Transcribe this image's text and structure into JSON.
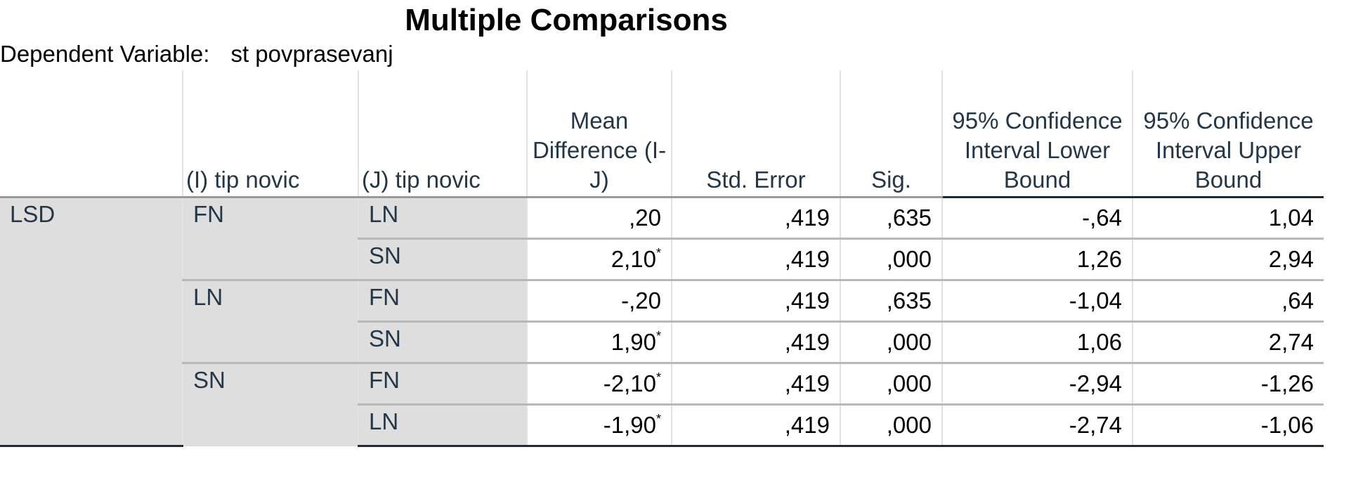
{
  "title": "Multiple Comparisons",
  "dependent_variable": {
    "label": "Dependent Variable:",
    "value": "st povprasevanj"
  },
  "table": {
    "columns": [
      "(I) tip novic",
      "(J) tip novic",
      "Mean Difference (I-J)",
      "Std. Error",
      "Sig.",
      "95% Confidence Interval Lower Bound",
      "95% Confidence Interval Upper Bound"
    ],
    "method": "LSD",
    "groups": [
      {
        "i": "FN",
        "rows": [
          {
            "j": "LN",
            "mean_difference": ",20",
            "std_error": ",419",
            "sig": ",635",
            "lower_bound": "-,64",
            "upper_bound": "1,04"
          },
          {
            "j": "SN",
            "mean_difference": "2,10",
            "flag": "*",
            "std_error": ",419",
            "sig": ",000",
            "lower_bound": "1,26",
            "upper_bound": "2,94"
          }
        ]
      },
      {
        "i": "LN",
        "rows": [
          {
            "j": "FN",
            "mean_difference": "-,20",
            "std_error": ",419",
            "sig": ",635",
            "lower_bound": "-1,04",
            "upper_bound": ",64"
          },
          {
            "j": "SN",
            "mean_difference": "1,90",
            "flag": "*",
            "std_error": ",419",
            "sig": ",000",
            "lower_bound": "1,06",
            "upper_bound": "2,74"
          }
        ]
      },
      {
        "i": "SN",
        "rows": [
          {
            "j": "FN",
            "mean_difference": "-2,10",
            "flag": "*",
            "std_error": ",419",
            "sig": ",000",
            "lower_bound": "-2,94",
            "upper_bound": "-1,26"
          },
          {
            "j": "LN",
            "mean_difference": "-1,90",
            "flag": "*",
            "std_error": ",419",
            "sig": ",000",
            "lower_bound": "-2,74",
            "upper_bound": "-1,06"
          }
        ]
      }
    ]
  }
}
